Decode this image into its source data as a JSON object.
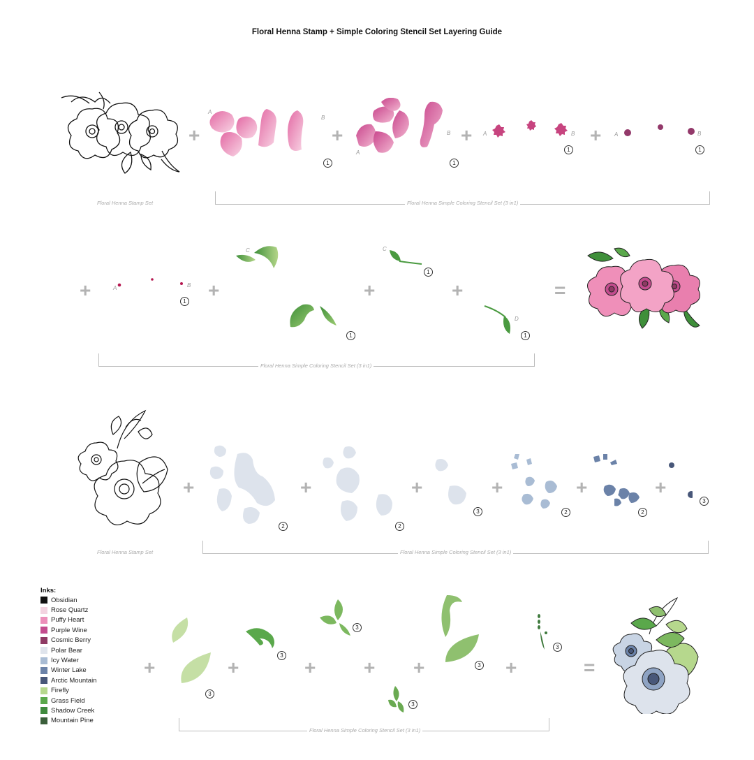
{
  "title": "Floral Henna Stamp + Simple Coloring Stencil Set Layering Guide",
  "labels": {
    "stamp_set": "Floral Henna Stamp Set",
    "stencil_set": "Floral Henna Simple Coloring Stencil Set (3 in1)"
  },
  "symbols": {
    "plus": "+",
    "equals": "="
  },
  "steps": {
    "n1": "1",
    "n2": "2",
    "n3": "3",
    "a": "A",
    "b": "B",
    "c": "C",
    "d": "D"
  },
  "inks": {
    "heading": "Inks:",
    "items": [
      {
        "name": "Obsidian",
        "color": "#111111"
      },
      {
        "name": "Rose Quartz",
        "color": "#f3d3e0"
      },
      {
        "name": "Puffy Heart",
        "color": "#ec8fba"
      },
      {
        "name": "Purple Wine",
        "color": "#c34c8e"
      },
      {
        "name": "Cosmic Berry",
        "color": "#8e3a64"
      },
      {
        "name": "Polar Bear",
        "color": "#dfe4ec"
      },
      {
        "name": "Icy Water",
        "color": "#a9bcd4"
      },
      {
        "name": "Winter Lake",
        "color": "#6b82a8"
      },
      {
        "name": "Arctic Mountain",
        "color": "#485779"
      },
      {
        "name": "Firefly",
        "color": "#b6d88d"
      },
      {
        "name": "Grass Field",
        "color": "#5aa84b"
      },
      {
        "name": "Shadow Creek",
        "color": "#3f8a3d"
      },
      {
        "name": "Mountain Pine",
        "color": "#3a5e3a"
      }
    ]
  }
}
